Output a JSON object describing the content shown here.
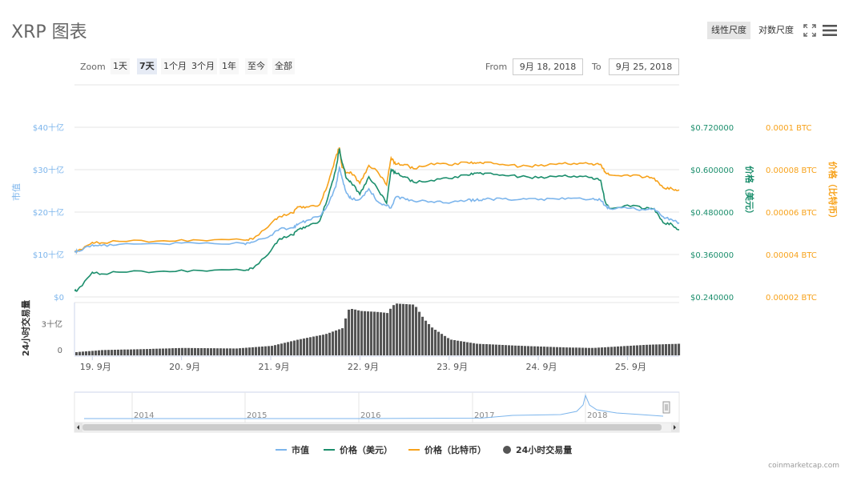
{
  "header": {
    "title": "XRP 图表",
    "linear_scale_label": "线性尺度",
    "log_scale_label": "对数尺度",
    "fullscreen_icon": "expand-icon",
    "menu_icon": "hamburger-menu-icon"
  },
  "range_selector": {
    "zoom_label": "Zoom",
    "buttons": [
      "1天",
      "7天",
      "1个月",
      "3个月",
      "1年",
      "至今",
      "全部"
    ],
    "active": "7天",
    "from_label": "From",
    "from_value": "9月 18, 2018",
    "to_label": "To",
    "to_value": "9月 25, 2018"
  },
  "legend": {
    "market_cap": "市值",
    "price_usd": "价格（美元）",
    "price_btc": "价格（比特币）",
    "volume_24h": "24小时交易量"
  },
  "credit": "coinmarketcap.com",
  "colors": {
    "market_cap": "#7cb5ec",
    "price_usd": "#1b8e6c",
    "price_btc": "#f7a21b",
    "volume": "#555555",
    "axis_text": "#999999"
  },
  "chart_data": {
    "type": "line",
    "main_panel": {
      "left_axis": {
        "title": "市值",
        "ticks": [
          "$0",
          "$10十亿",
          "$20十亿",
          "$30十亿",
          "$40十亿"
        ],
        "values": [
          0,
          10,
          20,
          30,
          40
        ],
        "unit": "十亿"
      },
      "right_axis_usd": {
        "title": "价格（美元）",
        "ticks": [
          "$0.240000",
          "$0.360000",
          "$0.480000",
          "$0.600000",
          "$0.720000"
        ],
        "values": [
          0.24,
          0.36,
          0.48,
          0.6,
          0.72
        ]
      },
      "right_axis_btc": {
        "title": "价格（比特币）",
        "ticks": [
          "0.00002 BTC",
          "0.00004 BTC",
          "0.00006 BTC",
          "0.00008 BTC",
          "0.0001 BTC"
        ],
        "values": [
          2e-05,
          4e-05,
          6e-05,
          8e-05,
          0.0001
        ]
      },
      "x": [
        0,
        0.03,
        0.2,
        0.3,
        0.5,
        1.0,
        1.4,
        1.9,
        2.0,
        2.2,
        2.3,
        2.45,
        2.5,
        2.6,
        2.75,
        2.85,
        2.93,
        2.97,
        3.0,
        3.05,
        3.1,
        3.2,
        3.3,
        3.4,
        3.5,
        3.55,
        3.6,
        3.7,
        3.8,
        4.0,
        4.2,
        4.4,
        4.5,
        4.6,
        4.8,
        5.0,
        5.2,
        5.4,
        5.6,
        5.8,
        5.9,
        5.95,
        6.0,
        6.2,
        6.4,
        6.5,
        6.6,
        6.7,
        6.78
      ],
      "series": [
        {
          "name": "市值",
          "axis": "left",
          "values": [
            10.6,
            10.8,
            12.3,
            12.1,
            12.4,
            12.5,
            12.6,
            12.6,
            12.9,
            14.5,
            16,
            16.3,
            17,
            18,
            19,
            22,
            26,
            30.5,
            28,
            24.5,
            23.2,
            23,
            25.5,
            22.5,
            21.5,
            21,
            23.5,
            23.2,
            22.6,
            22.5,
            22.1,
            22.8,
            22.8,
            23,
            23.1,
            23,
            22.9,
            23.1,
            23.3,
            23.1,
            22.8,
            21.5,
            20.8,
            20.9,
            20.5,
            20.8,
            18.9,
            18.2,
            17.5
          ]
        },
        {
          "name": "价格（美元）",
          "axis": "right_usd",
          "values": [
            0.258,
            0.258,
            0.31,
            0.305,
            0.31,
            0.313,
            0.315,
            0.315,
            0.32,
            0.37,
            0.405,
            0.415,
            0.43,
            0.44,
            0.455,
            0.53,
            0.6,
            0.66,
            0.62,
            0.575,
            0.565,
            0.53,
            0.58,
            0.545,
            0.505,
            0.6,
            0.59,
            0.58,
            0.565,
            0.57,
            0.575,
            0.585,
            0.59,
            0.59,
            0.585,
            0.58,
            0.577,
            0.58,
            0.582,
            0.578,
            0.57,
            0.51,
            0.49,
            0.5,
            0.49,
            0.49,
            0.45,
            0.445,
            0.43
          ]
        },
        {
          "name": "价格（比特币）",
          "axis": "right_btc",
          "values": [
            4.12e-05,
            4.15e-05,
            4.57e-05,
            4.55e-05,
            4.62e-05,
            4.65e-05,
            4.68e-05,
            4.68e-05,
            4.72e-05,
            5.45e-05,
            5.8e-05,
            5.95e-05,
            6.25e-05,
            6.25e-05,
            6.35e-05,
            7.45e-05,
            8.6e-05,
            9.05e-05,
            8.1e-05,
            7.85e-05,
            7.88e-05,
            7.35e-05,
            8.2e-05,
            7.9e-05,
            7.28e-05,
            8.55e-05,
            8.25e-05,
            8.25e-05,
            8.05e-05,
            8.3e-05,
            8.22e-05,
            8.35e-05,
            8.3e-05,
            8.35e-05,
            8.25e-05,
            8.15e-05,
            8.18e-05,
            8.25e-05,
            8.3e-05,
            8.28e-05,
            8.25e-05,
            7.9e-05,
            7.75e-05,
            7.75e-05,
            7.65e-05,
            7.6e-05,
            7.15e-05,
            7.1e-05,
            7.05e-05
          ]
        }
      ],
      "x_ticks": [
        "19. 9月",
        "20. 9月",
        "21. 9月",
        "22. 9月",
        "23. 9月",
        "24. 9月",
        "25. 9月"
      ],
      "x_tick_values": [
        0.2,
        1.2,
        2.2,
        3.2,
        4.2,
        5.2,
        6.2
      ]
    },
    "volume_panel": {
      "title": "24小时交易量",
      "ticks": [
        "0",
        "3十亿"
      ],
      "tick_values": [
        0,
        3
      ],
      "series": [
        {
          "name": "24小时交易量",
          "x": [
            0,
            0.3,
            0.8,
            1.2,
            1.8,
            2.2,
            2.5,
            2.8,
            3.0,
            3.05,
            3.1,
            3.2,
            3.4,
            3.5,
            3.55,
            3.6,
            3.8,
            3.9,
            4.0,
            4.2,
            4.5,
            5.0,
            5.5,
            5.8,
            6.0,
            6.4,
            6.78
          ],
          "values": [
            0.3,
            0.5,
            0.6,
            0.7,
            0.65,
            0.9,
            1.5,
            2.0,
            2.6,
            4.3,
            4.4,
            4.2,
            4.1,
            4.0,
            4.7,
            4.9,
            4.8,
            3.5,
            2.6,
            1.5,
            1.1,
            0.9,
            0.75,
            0.7,
            0.8,
            1.0,
            1.1
          ]
        }
      ]
    },
    "navigator": {
      "x_ticks": [
        "2014",
        "2015",
        "2016",
        "2017",
        "2018"
      ]
    }
  }
}
